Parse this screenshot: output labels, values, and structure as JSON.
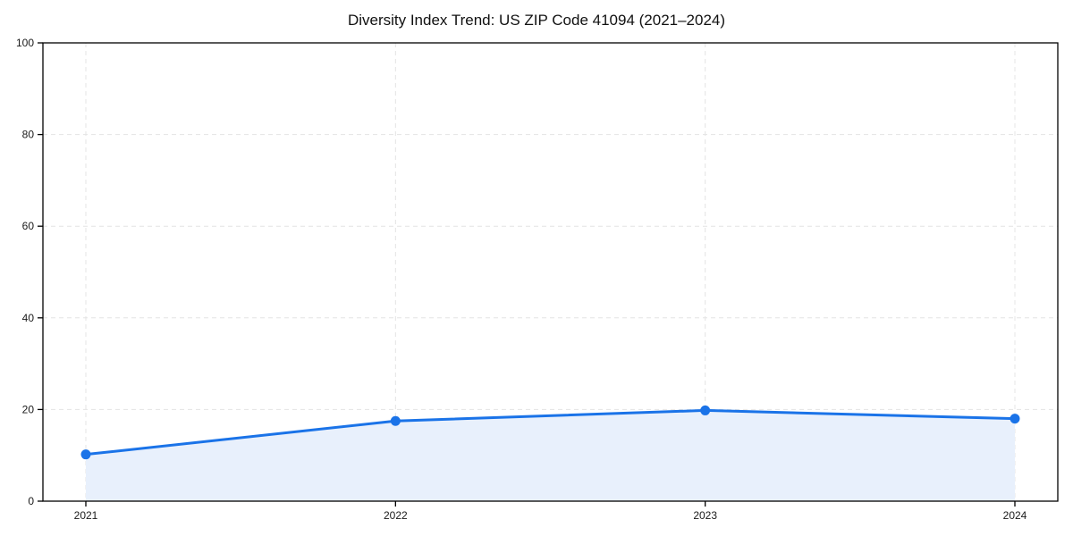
{
  "title": "Diversity Index Trend: US ZIP Code 41094 (2021–2024)",
  "colors": {
    "line": "#1a73e8",
    "marker": "#1a73e8",
    "area_fill": "#e8f0fc",
    "grid": "#e4e4e4",
    "spine": "#000000",
    "tick_text": "#1a1a1a",
    "background": "#ffffff"
  },
  "chart_data": {
    "type": "area",
    "title": "Diversity Index Trend: US ZIP Code 41094 (2021–2024)",
    "x": [
      2021,
      2022,
      2023,
      2024
    ],
    "xtick_labels": [
      "2021",
      "2022",
      "2023",
      "2024"
    ],
    "series": [
      {
        "name": "Diversity Index",
        "values": [
          10.2,
          17.5,
          19.8,
          18.0
        ]
      }
    ],
    "xlabel": "",
    "ylabel": "",
    "ylim": [
      0,
      100
    ],
    "yticks": [
      0,
      20,
      40,
      60,
      80,
      100
    ],
    "grid": true,
    "grid_style": "dashed",
    "legend_position": "none",
    "marker": "circle",
    "fill_baseline": 0
  }
}
